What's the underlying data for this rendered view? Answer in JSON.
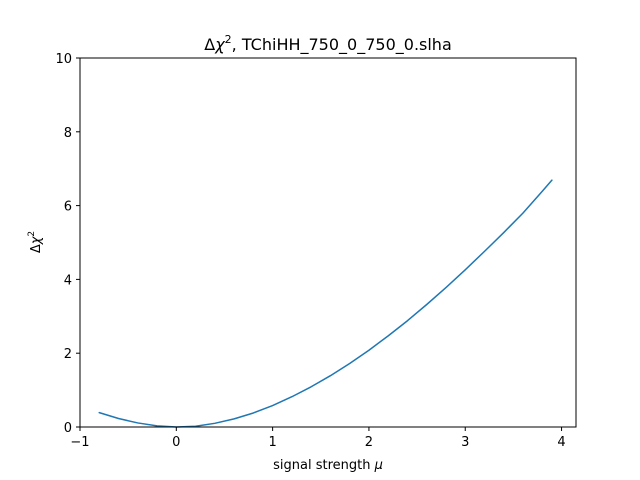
{
  "chart_data": {
    "type": "line",
    "title": "Δχ², TChiHH_750_0_750_0.slha",
    "title_parts": {
      "delta": "Δ",
      "chi": "χ",
      "sup": "2",
      "rest": ", TChiHH_750_0_750_0.slha"
    },
    "xlabel": "signal strength μ",
    "xlabel_parts": {
      "text": "signal strength ",
      "mu": "μ"
    },
    "ylabel": "Δχ²",
    "ylabel_parts": {
      "delta": "Δ",
      "chi": "χ",
      "sup": "2"
    },
    "xlim": [
      -1.0,
      4.15
    ],
    "ylim": [
      0,
      10
    ],
    "xticks": [
      -1,
      0,
      1,
      2,
      3,
      4
    ],
    "xtick_labels": [
      "−1",
      "0",
      "1",
      "2",
      "3",
      "4"
    ],
    "yticks": [
      0,
      2,
      4,
      6,
      8,
      10
    ],
    "ytick_labels": [
      "0",
      "2",
      "4",
      "6",
      "8",
      "10"
    ],
    "grid": false,
    "series": [
      {
        "color": "#1f77b4",
        "x": [
          -0.8,
          -0.6,
          -0.4,
          -0.2,
          0.0,
          0.2,
          0.4,
          0.6,
          0.8,
          1.0,
          1.2,
          1.4,
          1.6,
          1.8,
          2.0,
          2.2,
          2.4,
          2.6,
          2.8,
          3.0,
          3.2,
          3.4,
          3.6,
          3.8,
          3.9
        ],
        "y": [
          0.39,
          0.23,
          0.11,
          0.03,
          0.0,
          0.02,
          0.1,
          0.22,
          0.38,
          0.58,
          0.82,
          1.09,
          1.39,
          1.72,
          2.08,
          2.47,
          2.88,
          3.32,
          3.78,
          4.26,
          4.76,
          5.27,
          5.8,
          6.39,
          6.69
        ]
      }
    ]
  }
}
